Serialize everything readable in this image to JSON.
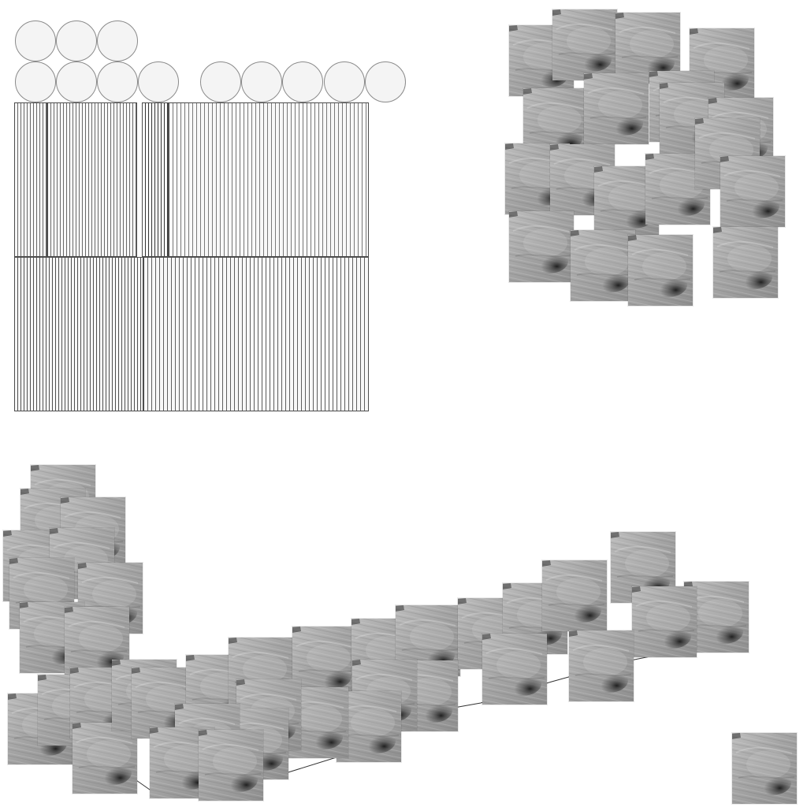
{
  "palette": {
    "background": "#ffffff",
    "circle_fill": "#f4f4f4",
    "circle_outline": "#8a8a8a",
    "stripe_line": "#585858",
    "stripe_light": "#f9f9f9",
    "tile_base": "#a9a9a9",
    "tile_dark": "#2d2d2d",
    "tile_light": "#d2d2d2"
  },
  "elements": {
    "circle_button": "circle-button",
    "striped_block": "striped-block",
    "texture_tile": "texture-tile",
    "connector_line": "connector-line"
  }
}
